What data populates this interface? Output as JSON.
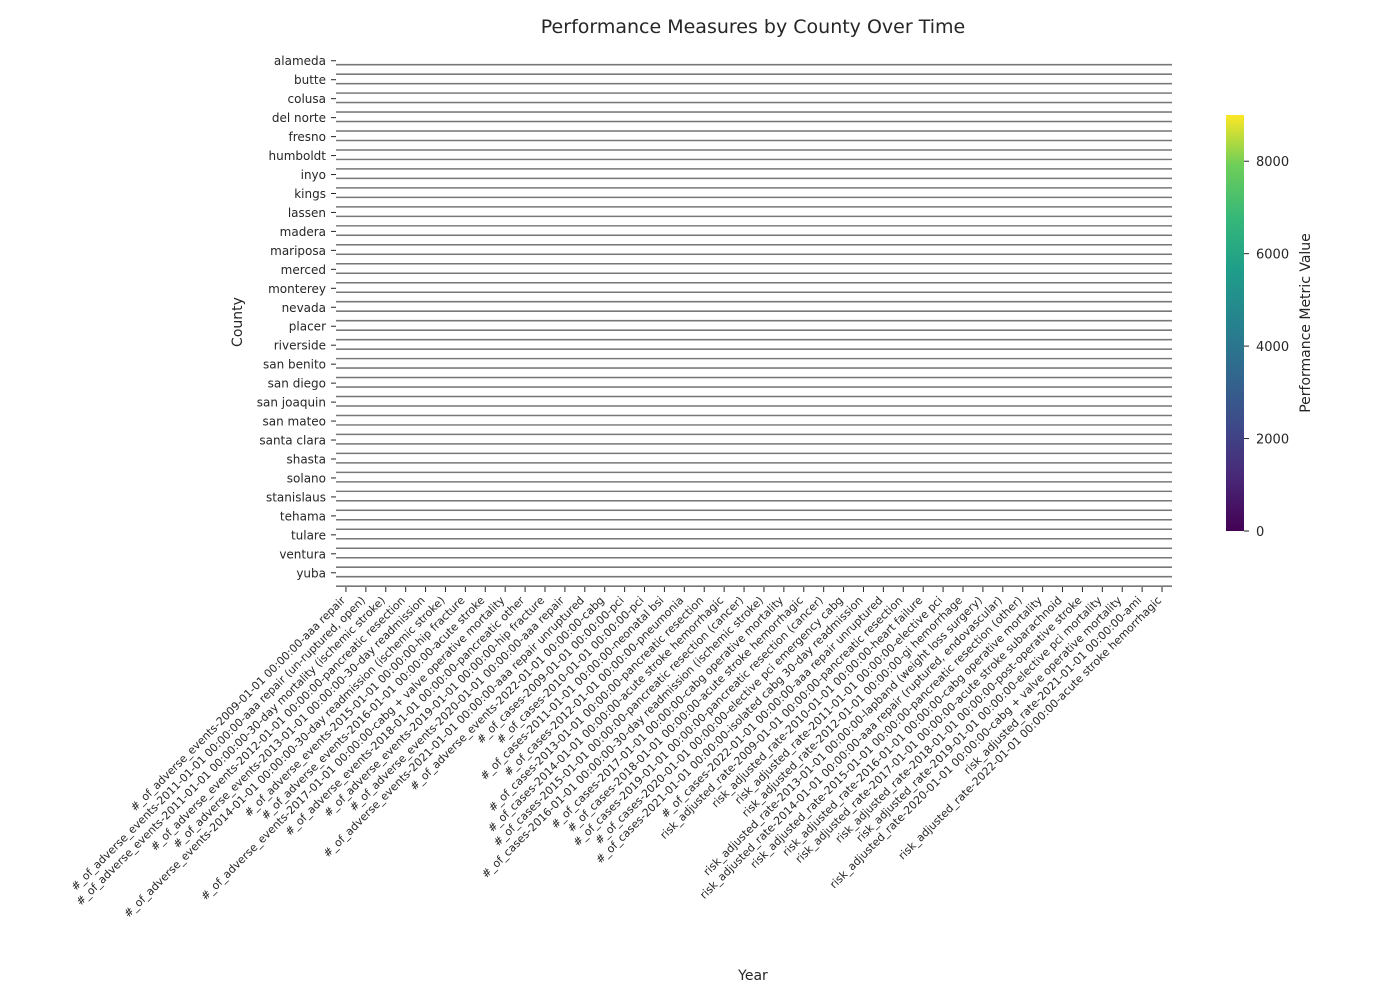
{
  "chart_data": {
    "type": "heatmap",
    "title": "Performance Measures by County Over Time",
    "xlabel": "Year",
    "ylabel": "County",
    "colorbar": {
      "label": "Performance Metric Value",
      "min": 0,
      "max": 9000,
      "ticks": [
        0,
        2000,
        4000,
        6000,
        8000
      ],
      "colormap": "viridis"
    },
    "counties": [
      "alameda",
      "butte",
      "colusa",
      "del norte",
      "fresno",
      "humboldt",
      "inyo",
      "kings",
      "lassen",
      "madera",
      "mariposa",
      "merced",
      "monterey",
      "nevada",
      "placer",
      "riverside",
      "san benito",
      "san diego",
      "san joaquin",
      "san mateo",
      "santa clara",
      "shasta",
      "solano",
      "stanislaus",
      "tehama",
      "tulare",
      "ventura",
      "yuba"
    ],
    "x_tick_labels": [
      "#_of_adverse_events-2009-01-01 00:00:00-aaa repair",
      "#_of_adverse_events-2011-01-01 00:00:00-aaa repair (un-ruptured, open)",
      "#_of_adverse_events-2011-01-01 00:00:00-30-day mortality (ischemic stroke)",
      "#_of_adverse_events-2012-01-01 00:00:00-pancreatic resection",
      "#_of_adverse_events-2013-01-01 00:00:00-30-day readmission",
      "#_of_adverse_events-2014-01-01 00:00:00-30-day readmission (ischemic stroke)",
      "#_of_adverse_events-2015-01-01 00:00:00-hip fracture",
      "#_of_adverse_events-2016-01-01 00:00:00-acute stroke",
      "#_of_adverse_events-2017-01-01 00:00:00-cabg + valve operative mortality",
      "#_of_adverse_events-2018-01-01 00:00:00-pancreatic other",
      "#_of_adverse_events-2019-01-01 00:00:00-hip fracture",
      "#_of_adverse_events-2020-01-01 00:00:00-aaa repair",
      "#_of_adverse_events-2021-01-01 00:00:00-aaa repair unruptured",
      "#_of_adverse_events-2022-01-01 00:00:00-cabg",
      "#_of_cases-2009-01-01 00:00:00-pci",
      "#_of_cases-2010-01-01 00:00:00-pci",
      "#_of_cases-2011-01-01 00:00:00-neonatal bsi",
      "#_of_cases-2012-01-01 00:00:00-pneumonia",
      "#_of_cases-2013-01-01 00:00:00-pancreatic resection",
      "#_of_cases-2014-01-01 00:00:00-acute stroke hemorrhagic",
      "#_of_cases-2015-01-01 00:00:00-pancreatic resection (cancer)",
      "#_of_cases-2016-01-01 00:00:00-30-day readmission (ischemic stroke)",
      "#_of_cases-2017-01-01 00:00:00-cabg operative mortality",
      "#_of_cases-2018-01-01 00:00:00-acute stroke hemorrhagic",
      "#_of_cases-2019-01-01 00:00:00-pancreatic resection (cancer)",
      "#_of_cases-2020-01-01 00:00:00-elective pci emergency cabg",
      "#_of_cases-2021-01-01 00:00:00-isolated cabg 30-day readmission",
      "#_of_cases-2022-01-01 00:00:00-aaa repair unruptured",
      "risk_adjusted_rate-2009-01-01 00:00:00-pancreatic resection",
      "risk_adjusted_rate-2010-01-01 00:00:00-heart failure",
      "risk_adjusted_rate-2011-01-01 00:00:00-elective pci",
      "risk_adjusted_rate-2012-01-01 00:00:00-gi hemorrhage",
      "risk_adjusted_rate-2013-01-01 00:00:00-lapband (weight loss surgery)",
      "risk_adjusted_rate-2014-01-01 00:00:00-aaa repair (ruptured, endovascular)",
      "risk_adjusted_rate-2015-01-01 00:00:00-pancreatic resection (other)",
      "risk_adjusted_rate-2016-01-01 00:00:00-cabg operative mortality",
      "risk_adjusted_rate-2017-01-01 00:00:00-acute stroke subarachnoid",
      "risk_adjusted_rate-2018-01-01 00:00:00-post-operative stroke",
      "risk_adjusted_rate-2019-01-01 00:00:00-elective pci mortality",
      "risk_adjusted_rate-2020-01-01 00:00:00-cabg + valve operative mortality",
      "risk_adjusted_rate-2021-01-01 00:00:00-ami",
      "risk_adjusted_rate-2022-01-01 00:00:00-acute stroke hemorrhagic"
    ],
    "grid": false,
    "legend": "colorbar-right"
  }
}
